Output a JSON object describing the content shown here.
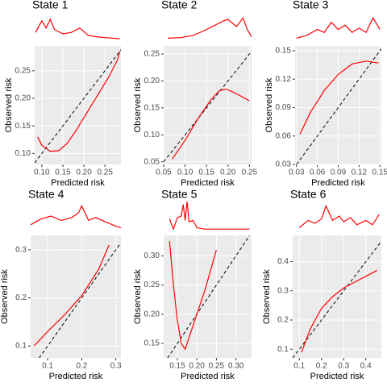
{
  "chart_data": [
    {
      "type": "line",
      "title": "State 1",
      "x_label": "Predicted risk",
      "y_label": "Observed risk",
      "color": "red",
      "grid": true,
      "xlim": [
        0.083,
        0.288
      ],
      "ylim": [
        0.08,
        0.295
      ],
      "xticks": [
        {
          "value": 0.1,
          "label": "0.10"
        },
        0.15,
        {
          "value": 0.2,
          "label": "0.20"
        },
        0.25
      ],
      "yticks": [
        {
          "value": 0.1,
          "label": "0.10"
        },
        0.15,
        {
          "value": 0.2,
          "label": "0.20"
        },
        0.25
      ],
      "x": [
        0.09,
        0.1,
        0.12,
        0.14,
        0.16,
        0.18,
        0.2,
        0.22,
        0.24,
        0.26,
        0.28,
        0.285
      ],
      "values": [
        0.13,
        0.115,
        0.104,
        0.105,
        0.118,
        0.14,
        0.165,
        0.19,
        0.215,
        0.24,
        0.27,
        0.285
      ],
      "density_x": [
        0.085,
        0.1,
        0.11,
        0.12,
        0.13,
        0.15,
        0.17,
        0.19,
        0.21,
        0.23,
        0.25,
        0.27,
        0.285
      ],
      "density": [
        0.3,
        0.7,
        0.45,
        0.75,
        0.4,
        0.25,
        0.3,
        0.45,
        0.2,
        0.15,
        0.12,
        0.1,
        0.08
      ]
    },
    {
      "type": "line",
      "title": "State 2",
      "x_label": "Predicted risk",
      "y_label": "Observed risk",
      "color": "red",
      "grid": true,
      "xlim": [
        0.05,
        0.255
      ],
      "ylim": [
        0.045,
        0.265
      ],
      "xticks": [
        0.05,
        {
          "value": 0.1,
          "label": "0.10"
        },
        0.15,
        {
          "value": 0.2,
          "label": "0.20"
        },
        0.25
      ],
      "yticks": [
        0.05,
        {
          "value": 0.1,
          "label": "0.10"
        },
        0.15,
        {
          "value": 0.2,
          "label": "0.20"
        },
        0.25
      ],
      "x": [
        0.07,
        0.1,
        0.13,
        0.16,
        0.18,
        0.195,
        0.21,
        0.23,
        0.25
      ],
      "values": [
        0.055,
        0.09,
        0.13,
        0.165,
        0.182,
        0.185,
        0.18,
        0.172,
        0.163
      ],
      "density_x": [
        0.06,
        0.09,
        0.12,
        0.15,
        0.17,
        0.19,
        0.2,
        0.22,
        0.235,
        0.245,
        0.255
      ],
      "density": [
        0.1,
        0.12,
        0.2,
        0.4,
        0.55,
        0.7,
        0.75,
        0.5,
        0.8,
        0.4,
        0.15
      ]
    },
    {
      "type": "line",
      "title": "State 3",
      "x_label": "Predicted risk",
      "y_label": "Observed risk",
      "color": "red",
      "grid": true,
      "xlim": [
        0.028,
        0.152
      ],
      "ylim": [
        0.03,
        0.155
      ],
      "xticks": [
        0.03,
        0.06,
        0.09,
        0.12,
        0.15
      ],
      "yticks": [
        0.03,
        0.06,
        0.09,
        0.12,
        0.15
      ],
      "x": [
        0.035,
        0.05,
        0.07,
        0.09,
        0.11,
        0.13,
        0.148
      ],
      "values": [
        0.062,
        0.085,
        0.108,
        0.125,
        0.136,
        0.139,
        0.137
      ],
      "density_x": [
        0.03,
        0.045,
        0.06,
        0.07,
        0.08,
        0.09,
        0.1,
        0.11,
        0.12,
        0.13,
        0.14,
        0.15
      ],
      "density": [
        0.1,
        0.2,
        0.4,
        0.3,
        0.65,
        0.4,
        0.55,
        0.3,
        0.45,
        0.3,
        0.8,
        0.4
      ]
    },
    {
      "type": "line",
      "title": "State 4",
      "x_label": "Predicted risk",
      "y_label": "Observed risk",
      "color": "red",
      "grid": true,
      "xlim": [
        0.05,
        0.315
      ],
      "ylim": [
        0.075,
        0.33
      ],
      "xticks": [
        0.1,
        0.2,
        0.3
      ],
      "yticks": [
        0.1,
        0.2,
        0.3
      ],
      "x": [
        0.06,
        0.1,
        0.15,
        0.2,
        0.25,
        0.28
      ],
      "values": [
        0.1,
        0.13,
        0.165,
        0.205,
        0.26,
        0.31
      ],
      "density_x": [
        0.05,
        0.08,
        0.11,
        0.14,
        0.17,
        0.19,
        0.2,
        0.22,
        0.24,
        0.27,
        0.3,
        0.315
      ],
      "density": [
        0.2,
        0.4,
        0.5,
        0.35,
        0.45,
        0.6,
        0.85,
        0.35,
        0.45,
        0.3,
        0.15,
        0.1
      ]
    },
    {
      "type": "line",
      "title": "State 5",
      "x_label": "Predicted risk",
      "y_label": "Observed risk",
      "color": "red",
      "grid": true,
      "xlim": [
        0.115,
        0.34
      ],
      "ylim": [
        0.125,
        0.335
      ],
      "xticks": [
        0.15,
        {
          "value": 0.2,
          "label": "0.20"
        },
        0.25,
        {
          "value": 0.3,
          "label": "0.30"
        }
      ],
      "yticks": [
        0.15,
        {
          "value": 0.2,
          "label": "0.20"
        },
        0.25,
        {
          "value": 0.3,
          "label": "0.30"
        }
      ],
      "x": [
        0.13,
        0.14,
        0.15,
        0.16,
        0.17,
        0.18,
        0.2,
        0.22,
        0.25
      ],
      "values": [
        0.325,
        0.25,
        0.19,
        0.15,
        0.14,
        0.16,
        0.2,
        0.24,
        0.31
      ],
      "density_x": [
        0.13,
        0.14,
        0.15,
        0.16,
        0.165,
        0.17,
        0.175,
        0.18,
        0.19,
        0.2,
        0.22,
        0.26,
        0.3,
        0.335
      ],
      "density": [
        0.4,
        0.05,
        0.45,
        0.5,
        0.9,
        0.35,
        1,
        0.3,
        0.35,
        0.1,
        0.05,
        0.05,
        0.05,
        0.05
      ]
    },
    {
      "type": "line",
      "title": "State 6",
      "x_label": "Predicted risk",
      "y_label": "Observed risk",
      "color": "red",
      "grid": true,
      "xlim": [
        0.07,
        0.47
      ],
      "ylim": [
        0.07,
        0.49
      ],
      "xticks": [
        0.1,
        0.2,
        0.3,
        0.4
      ],
      "yticks": [
        0.1,
        0.2,
        0.3,
        0.4
      ],
      "x": [
        0.11,
        0.15,
        0.2,
        0.25,
        0.3,
        0.35,
        0.4,
        0.45
      ],
      "values": [
        0.09,
        0.17,
        0.24,
        0.28,
        0.31,
        0.33,
        0.35,
        0.37
      ],
      "density_x": [
        0.1,
        0.14,
        0.17,
        0.2,
        0.22,
        0.25,
        0.28,
        0.3,
        0.33,
        0.36,
        0.4,
        0.43,
        0.46
      ],
      "density": [
        0.1,
        0.35,
        0.25,
        0.4,
        0.85,
        0.35,
        0.5,
        0.3,
        0.45,
        0.2,
        0.35,
        0.2,
        0.55
      ]
    }
  ]
}
